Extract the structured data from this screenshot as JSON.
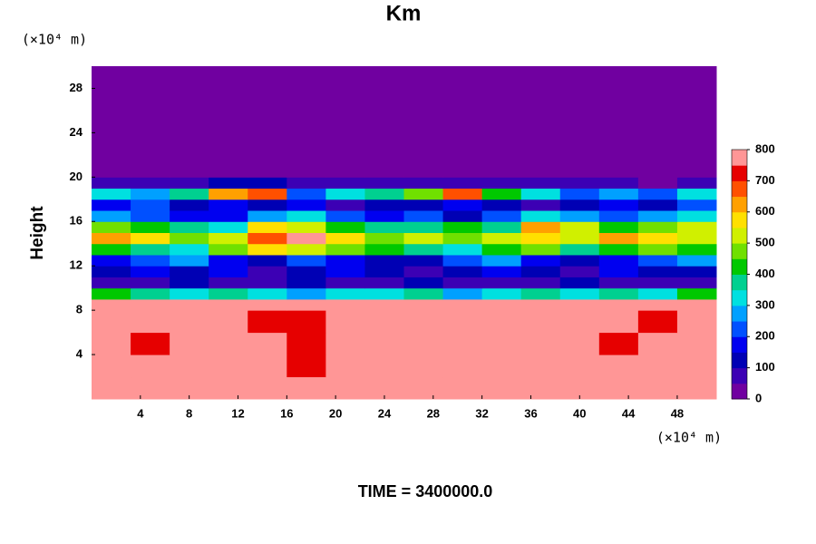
{
  "chart_data": {
    "type": "heatmap",
    "title": "Km",
    "y_unit": "(×10⁴ m)",
    "x_unit": "(×10⁴ m)",
    "y_label": "Height",
    "footer": "TIME = 3400000.0",
    "xlim": [
      0,
      51.2
    ],
    "ylim": [
      0,
      30
    ],
    "xticks": [
      4,
      8,
      12,
      16,
      20,
      24,
      28,
      32,
      36,
      40,
      44,
      48
    ],
    "yticks": [
      4,
      8,
      12,
      16,
      20,
      24,
      28
    ],
    "x_edges": [
      0,
      3.2,
      6.4,
      9.6,
      12.8,
      16,
      19.2,
      22.4,
      25.6,
      28.8,
      32,
      35.2,
      38.4,
      41.6,
      44.8,
      48,
      51.2
    ],
    "y_edges": [
      0,
      2,
      4,
      6,
      8,
      9,
      10,
      11,
      12,
      13,
      14,
      15,
      16,
      17,
      18,
      19,
      20,
      30
    ],
    "z": [
      [
        800,
        800,
        800,
        800,
        800,
        800,
        800,
        800,
        800,
        800,
        800,
        800,
        800,
        800,
        800,
        800
      ],
      [
        800,
        800,
        800,
        800,
        800,
        700,
        800,
        800,
        800,
        800,
        800,
        800,
        800,
        800,
        800,
        800
      ],
      [
        800,
        700,
        800,
        800,
        800,
        700,
        800,
        800,
        800,
        800,
        800,
        800,
        800,
        700,
        800,
        800
      ],
      [
        800,
        800,
        800,
        800,
        700,
        700,
        800,
        800,
        800,
        800,
        800,
        800,
        800,
        800,
        700,
        800
      ],
      [
        750,
        800,
        800,
        800,
        800,
        800,
        800,
        800,
        800,
        800,
        800,
        800,
        800,
        800,
        800,
        750
      ],
      [
        400,
        350,
        300,
        350,
        300,
        250,
        300,
        300,
        350,
        250,
        300,
        350,
        300,
        350,
        300,
        400
      ],
      [
        50,
        50,
        100,
        50,
        50,
        100,
        50,
        50,
        100,
        50,
        50,
        50,
        100,
        50,
        50,
        50
      ],
      [
        100,
        150,
        100,
        150,
        50,
        100,
        150,
        100,
        50,
        100,
        150,
        100,
        50,
        150,
        100,
        100
      ],
      [
        150,
        200,
        250,
        150,
        100,
        200,
        150,
        100,
        100,
        200,
        250,
        150,
        100,
        150,
        200,
        250
      ],
      [
        400,
        350,
        300,
        450,
        550,
        500,
        450,
        400,
        350,
        300,
        400,
        450,
        350,
        400,
        450,
        400
      ],
      [
        600,
        550,
        450,
        500,
        650,
        750,
        550,
        450,
        500,
        450,
        500,
        550,
        500,
        600,
        550,
        500
      ],
      [
        450,
        400,
        350,
        300,
        550,
        500,
        400,
        350,
        350,
        400,
        350,
        600,
        500,
        400,
        450,
        500
      ],
      [
        250,
        200,
        150,
        150,
        250,
        300,
        200,
        150,
        200,
        100,
        200,
        300,
        250,
        200,
        250,
        300
      ],
      [
        150,
        200,
        100,
        150,
        100,
        150,
        50,
        100,
        100,
        150,
        100,
        50,
        100,
        150,
        100,
        200
      ],
      [
        300,
        250,
        350,
        600,
        650,
        200,
        300,
        350,
        450,
        650,
        400,
        300,
        200,
        250,
        200,
        300
      ],
      [
        50,
        50,
        50,
        100,
        100,
        50,
        50,
        50,
        50,
        50,
        50,
        50,
        50,
        50,
        0,
        50
      ],
      [
        0,
        0,
        0,
        0,
        0,
        0,
        0,
        0,
        0,
        0,
        0,
        0,
        0,
        0,
        0,
        0
      ]
    ],
    "levels": [
      0,
      50,
      100,
      150,
      200,
      250,
      300,
      350,
      400,
      450,
      500,
      550,
      600,
      650,
      700,
      750,
      800
    ],
    "colors": [
      "#7000a0",
      "#3c00b4",
      "#0000b4",
      "#0000f0",
      "#0050ff",
      "#00a0ff",
      "#00e0e0",
      "#00d090",
      "#00c800",
      "#70e000",
      "#d0f000",
      "#ffe000",
      "#ffa000",
      "#ff5000",
      "#e60000",
      "#ff9696"
    ],
    "cbar_ticks": [
      0,
      100,
      200,
      300,
      400,
      500,
      600,
      700,
      800
    ]
  }
}
